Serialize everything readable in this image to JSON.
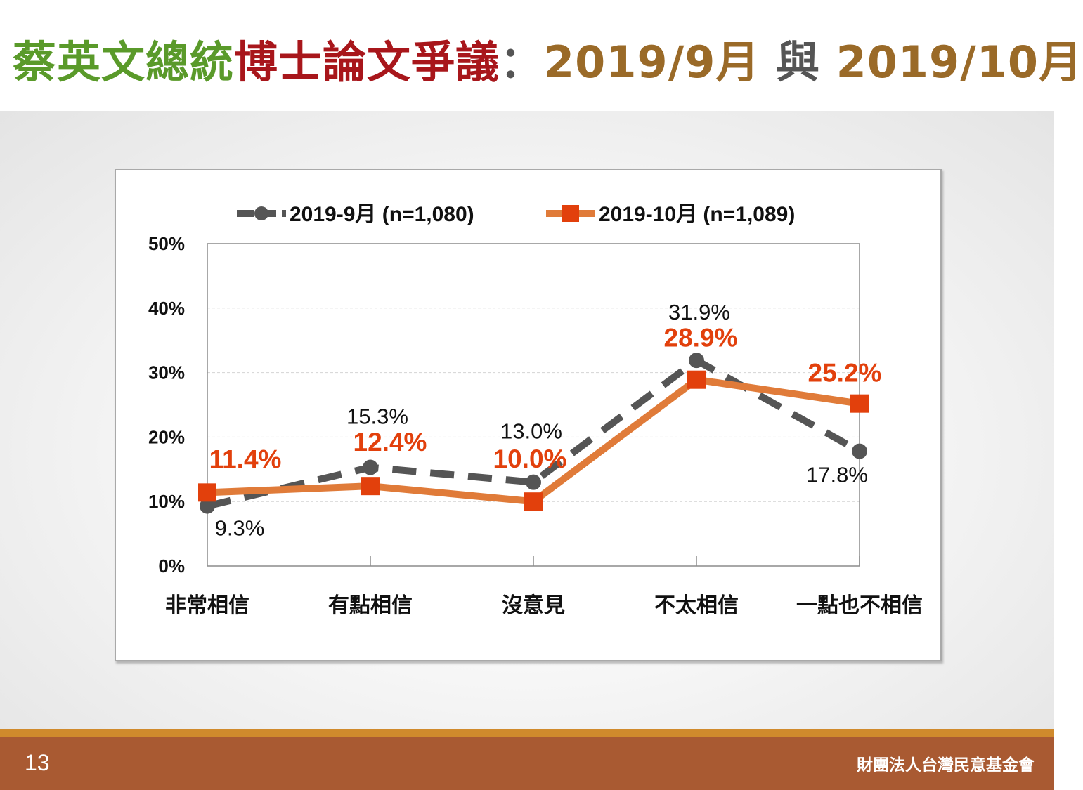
{
  "title": {
    "part1": "蔡英文總統",
    "part2": "博士論文爭議",
    "part3": "：",
    "part4": "2019/9月",
    "part5": " 與 ",
    "part6": "2019/10月"
  },
  "colors": {
    "title_green": "#5a9a2a",
    "title_red": "#a8161b",
    "title_brown": "#9a6a28",
    "series_sep": "#555555",
    "series_oct": "#e07b39",
    "series_oct_marker": "#e2400c",
    "footer_bar": "#a95a32",
    "footer_stripe": "#d08a2c"
  },
  "chart_data": {
    "type": "line",
    "categories": [
      "非常相信",
      "有點相信",
      "沒意見",
      "不太相信",
      "一點也不相信"
    ],
    "ylim": [
      0,
      50
    ],
    "yticks": [
      "0%",
      "10%",
      "20%",
      "30%",
      "40%",
      "50%"
    ],
    "grid": true,
    "legend_position": "top",
    "series": [
      {
        "name": "2019-9月  (n=1,080)",
        "values": [
          9.3,
          15.3,
          13.0,
          31.9,
          17.8
        ],
        "labels": [
          "9.3%",
          "15.3%",
          "13.0%",
          "31.9%",
          "17.8%"
        ],
        "style": "dashed",
        "marker": "circle"
      },
      {
        "name": "2019-10月  (n=1,089)",
        "values": [
          11.4,
          12.4,
          10.0,
          28.9,
          25.2
        ],
        "labels": [
          "11.4%",
          "12.4%",
          "10.0%",
          "28.9%",
          "25.2%"
        ],
        "style": "solid",
        "marker": "square"
      }
    ]
  },
  "footer": {
    "page_number": "13",
    "organization": "財團法人台灣民意基金會"
  }
}
